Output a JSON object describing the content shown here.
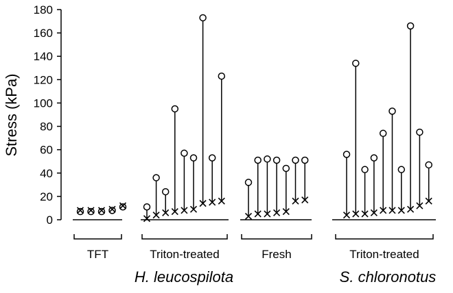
{
  "chart_data": {
    "type": "scatter",
    "ylabel": "Stress (kPa)",
    "ylim": [
      0,
      180
    ],
    "yticks": [
      0,
      20,
      40,
      60,
      80,
      100,
      120,
      140,
      160,
      180
    ],
    "groups": [
      {
        "label": "TFT",
        "species": "H. leucospilota",
        "pairs": [
          {
            "cross": 8,
            "circle": 7
          },
          {
            "cross": 8,
            "circle": 7
          },
          {
            "cross": 8,
            "circle": 7
          },
          {
            "cross": 9,
            "circle": 8
          },
          {
            "cross": 12,
            "circle": 11
          }
        ]
      },
      {
        "label": "Triton-treated",
        "species": "H. leucospilota",
        "pairs": [
          {
            "cross": 1,
            "circle": 11
          },
          {
            "cross": 4,
            "circle": 36
          },
          {
            "cross": 6,
            "circle": 24
          },
          {
            "cross": 7,
            "circle": 95
          },
          {
            "cross": 8,
            "circle": 57
          },
          {
            "cross": 9,
            "circle": 53
          },
          {
            "cross": 14,
            "circle": 173
          },
          {
            "cross": 15,
            "circle": 53
          },
          {
            "cross": 16,
            "circle": 123
          }
        ]
      },
      {
        "label": "Fresh",
        "species": "H. leucospilota",
        "pairs": [
          {
            "cross": 3,
            "circle": 32
          },
          {
            "cross": 5,
            "circle": 51
          },
          {
            "cross": 5,
            "circle": 52
          },
          {
            "cross": 6,
            "circle": 51
          },
          {
            "cross": 7,
            "circle": 44
          },
          {
            "cross": 16,
            "circle": 51
          },
          {
            "cross": 17,
            "circle": 51
          }
        ]
      },
      {
        "label": "Triton-treated",
        "species": "S. chloronotus",
        "pairs": [
          {
            "cross": 4,
            "circle": 56
          },
          {
            "cross": 5,
            "circle": 134
          },
          {
            "cross": 5,
            "circle": 43
          },
          {
            "cross": 6,
            "circle": 53
          },
          {
            "cross": 8,
            "circle": 74
          },
          {
            "cross": 8,
            "circle": 93
          },
          {
            "cross": 8,
            "circle": 43
          },
          {
            "cross": 9,
            "circle": 166
          },
          {
            "cross": 12,
            "circle": 75
          },
          {
            "cross": 16,
            "circle": 47
          }
        ]
      }
    ],
    "species_labels": [
      "H. leucospilota",
      "S. chloronotus"
    ]
  }
}
